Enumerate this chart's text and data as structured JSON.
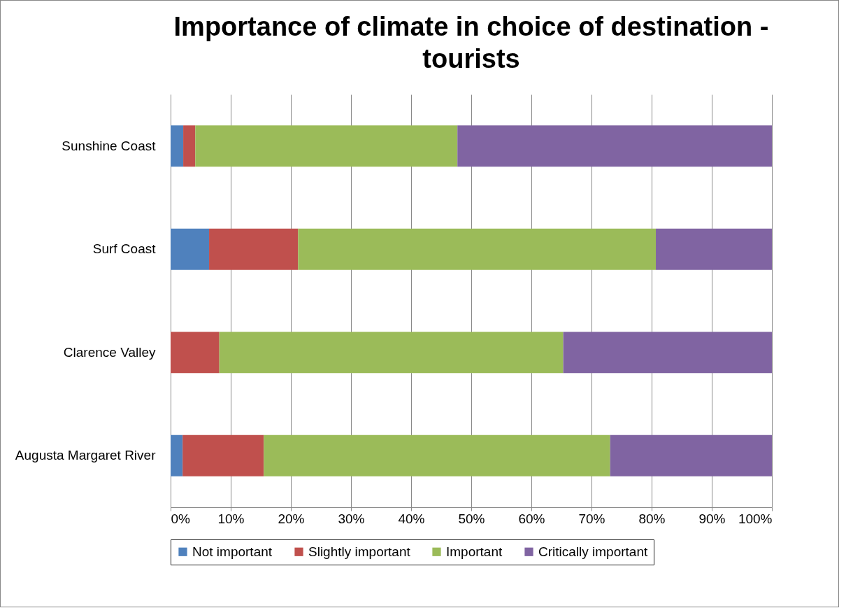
{
  "chart_data": {
    "type": "bar",
    "orientation": "horizontal",
    "stacked": true,
    "title": "Importance of climate in choice of destination - tourists",
    "categories": [
      "Sunshine Coast",
      "Surf Coast",
      "Clarence Valley",
      "Augusta Margaret River"
    ],
    "series": [
      {
        "name": "Not important",
        "color": "#4f81bd",
        "values": [
          2.1,
          6.4,
          0,
          2.0
        ]
      },
      {
        "name": "Slightly important",
        "color": "#c0504d",
        "values": [
          2.0,
          14.8,
          8.1,
          13.5
        ]
      },
      {
        "name": "Important",
        "color": "#9bbb59",
        "values": [
          43.6,
          59.5,
          57.2,
          57.6
        ]
      },
      {
        "name": "Critically important",
        "color": "#8064a2",
        "values": [
          52.3,
          19.3,
          34.7,
          26.9
        ]
      }
    ],
    "xlim": [
      0,
      100
    ],
    "xticks": [
      {
        "value": 0,
        "label": "0%"
      },
      {
        "value": 10,
        "label": "10%"
      },
      {
        "value": 20,
        "label": "20%"
      },
      {
        "value": 30,
        "label": "30%"
      },
      {
        "value": 40,
        "label": "40%"
      },
      {
        "value": 50,
        "label": "50%"
      },
      {
        "value": 60,
        "label": "60%"
      },
      {
        "value": 70,
        "label": "70%"
      },
      {
        "value": 80,
        "label": "80%"
      },
      {
        "value": 90,
        "label": "90%"
      },
      {
        "value": 100,
        "label": "100%"
      }
    ],
    "grid": "x",
    "legend": "bottom"
  }
}
